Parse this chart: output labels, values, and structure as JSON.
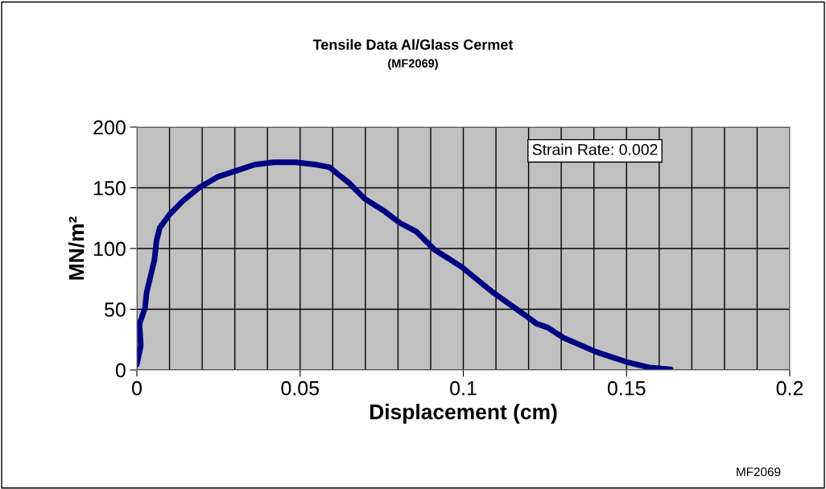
{
  "chart_data": {
    "type": "line",
    "title": "Tensile Data Al/Glass Cermet",
    "subtitle": "(MF2069)",
    "xlabel": "Displacement (cm)",
    "ylabel": "MN/m²",
    "annotations": [
      "Strain Rate: 0.002",
      "MF2069"
    ],
    "series": [
      {
        "color": "#000080",
        "x": [
          0,
          0.0012,
          0.0008,
          0.0025,
          0.003,
          0.004,
          0.0054,
          0.006,
          0.007,
          0.01,
          0.014,
          0.019,
          0.0247,
          0.0304,
          0.036,
          0.042,
          0.0486,
          0.055,
          0.059,
          0.0617,
          0.065,
          0.0698,
          0.0757,
          0.0806,
          0.0856,
          0.0912,
          0.0994,
          0.109,
          0.119,
          0.1225,
          0.1258,
          0.1307,
          0.1406,
          0.15,
          0.157,
          0.1635
        ],
        "values": [
          4.6,
          20,
          38,
          51,
          64,
          75,
          91,
          106,
          117,
          128,
          139,
          150,
          159,
          164,
          169,
          171,
          171,
          169,
          167,
          161,
          154,
          141,
          131,
          121,
          114,
          99,
          85,
          64,
          45,
          38,
          35,
          26.5,
          15,
          6.6,
          2,
          0.5
        ]
      }
    ],
    "xlim": [
      0,
      0.2
    ],
    "xticks": [
      0,
      {
        "value": 0.01,
        "label": null
      },
      {
        "value": 0.02,
        "label": null
      },
      {
        "value": 0.03,
        "label": null
      },
      {
        "value": 0.04,
        "label": null
      },
      0.05,
      {
        "value": 0.06,
        "label": null
      },
      {
        "value": 0.07,
        "label": null
      },
      {
        "value": 0.08,
        "label": null
      },
      {
        "value": 0.09,
        "label": null
      },
      0.1,
      {
        "value": 0.11,
        "label": null
      },
      {
        "value": 0.12,
        "label": null
      },
      {
        "value": 0.13,
        "label": null
      },
      {
        "value": 0.14,
        "label": null
      },
      0.15,
      {
        "value": 0.16,
        "label": null
      },
      {
        "value": 0.17,
        "label": null
      },
      {
        "value": 0.18,
        "label": null
      },
      {
        "value": 0.19,
        "label": null
      },
      0.2
    ],
    "ylim": [
      0,
      200
    ],
    "yticks": [
      0,
      50,
      100,
      150,
      200
    ],
    "grid": true,
    "marker": "none",
    "line_style": "solid"
  }
}
